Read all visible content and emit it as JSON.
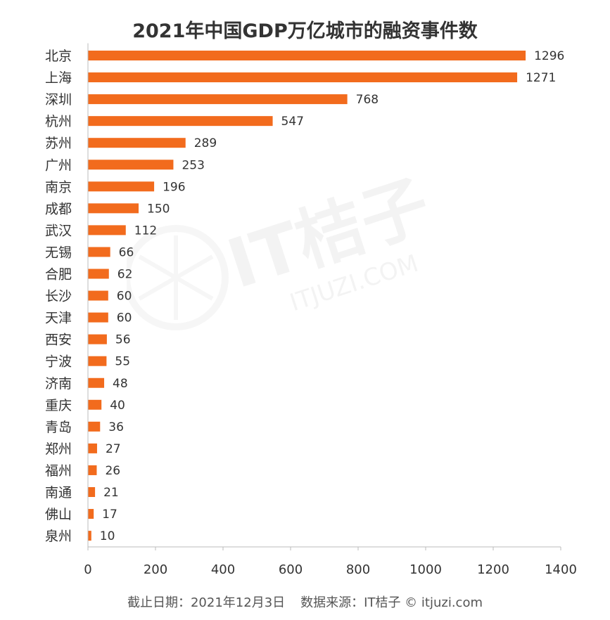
{
  "chart_data": {
    "type": "bar",
    "orientation": "horizontal",
    "title": "2021年中国GDP万亿城市的融资事件数",
    "categories": [
      "北京",
      "上海",
      "深圳",
      "杭州",
      "苏州",
      "广州",
      "南京",
      "成都",
      "武汉",
      "无锡",
      "合肥",
      "长沙",
      "天津",
      "西安",
      "宁波",
      "济南",
      "重庆",
      "青岛",
      "郑州",
      "福州",
      "南通",
      "佛山",
      "泉州"
    ],
    "values": [
      1296,
      1271,
      768,
      547,
      289,
      253,
      196,
      150,
      112,
      66,
      62,
      60,
      60,
      56,
      55,
      48,
      40,
      36,
      27,
      26,
      21,
      17,
      10
    ],
    "xlim": [
      0,
      1400
    ],
    "xticks": [
      0,
      200,
      400,
      600,
      800,
      1000,
      1200,
      1400
    ],
    "bar_color": "#F26B1D",
    "grid": false,
    "legend": "none"
  },
  "footer": {
    "date": "截止日期：2021年12月3日",
    "source": "数据来源：IT桔子 © itjuzi.com"
  },
  "watermark": {
    "brand": "IT桔子",
    "url": "ITJUZI.COM"
  }
}
